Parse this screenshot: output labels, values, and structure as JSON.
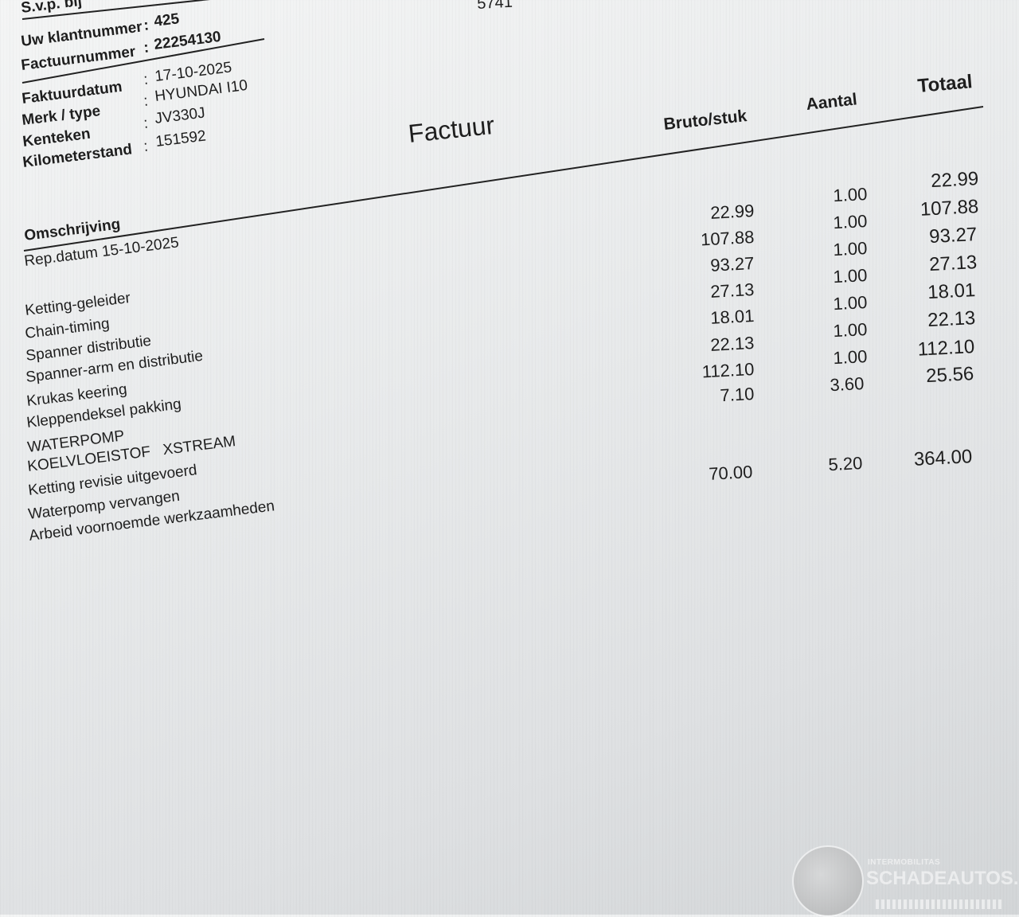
{
  "header": {
    "svp": "S.v.p. bij",
    "top_fragment": "5741",
    "fields": [
      {
        "label": "Uw klantnummer",
        "value": "425"
      },
      {
        "label": "Factuurnummer",
        "value": "22254130"
      },
      {
        "label": "Faktuurdatum",
        "value": "17-10-2025"
      },
      {
        "label": "Merk / type",
        "value": "HYUNDAI I10"
      },
      {
        "label": "Kenteken",
        "value": "JV330J"
      },
      {
        "label": "Kilometerstand",
        "value": "151592"
      }
    ],
    "separator": ":"
  },
  "title": "Factuur",
  "columns": {
    "description": "Omschrijving",
    "bruto": "Bruto/stuk",
    "aantal": "Aantal",
    "totaal": "Totaal"
  },
  "rep_datum": "Rep.datum 15-10-2025",
  "items": [
    {
      "description": "Ketting-geleider",
      "bruto": "22.99",
      "aantal": "1.00",
      "totaal": "22.99"
    },
    {
      "description": "Chain-timing",
      "bruto": "107.88",
      "aantal": "1.00",
      "totaal": "107.88"
    },
    {
      "description": "Spanner distributie",
      "bruto": "93.27",
      "aantal": "1.00",
      "totaal": "93.27"
    },
    {
      "description": "Spanner-arm en distributie",
      "bruto": "27.13",
      "aantal": "1.00",
      "totaal": "27.13"
    },
    {
      "description": "Krukas keering",
      "bruto": "18.01",
      "aantal": "1.00",
      "totaal": "18.01"
    },
    {
      "description": "Kleppendeksel pakking",
      "bruto": "22.13",
      "aantal": "1.00",
      "totaal": "22.13"
    },
    {
      "description": "WATERPOMP",
      "bruto": "112.10",
      "aantal": "1.00",
      "totaal": "112.10"
    },
    {
      "description": "KOELVLOEISTOF   XSTREAM",
      "bruto": "7.10",
      "aantal": "3.60",
      "totaal": "25.56"
    }
  ],
  "labor": {
    "lines": [
      "Ketting revisie uitgevoerd",
      "Waterpomp vervangen",
      "Arbeid voornoemde werkzaamheden"
    ],
    "bruto": "70.00",
    "aantal": "5.20",
    "totaal": "364.00"
  },
  "watermark": {
    "small": "INTERMOBILITAS",
    "big": "SCHADEAUTOS.NL"
  }
}
